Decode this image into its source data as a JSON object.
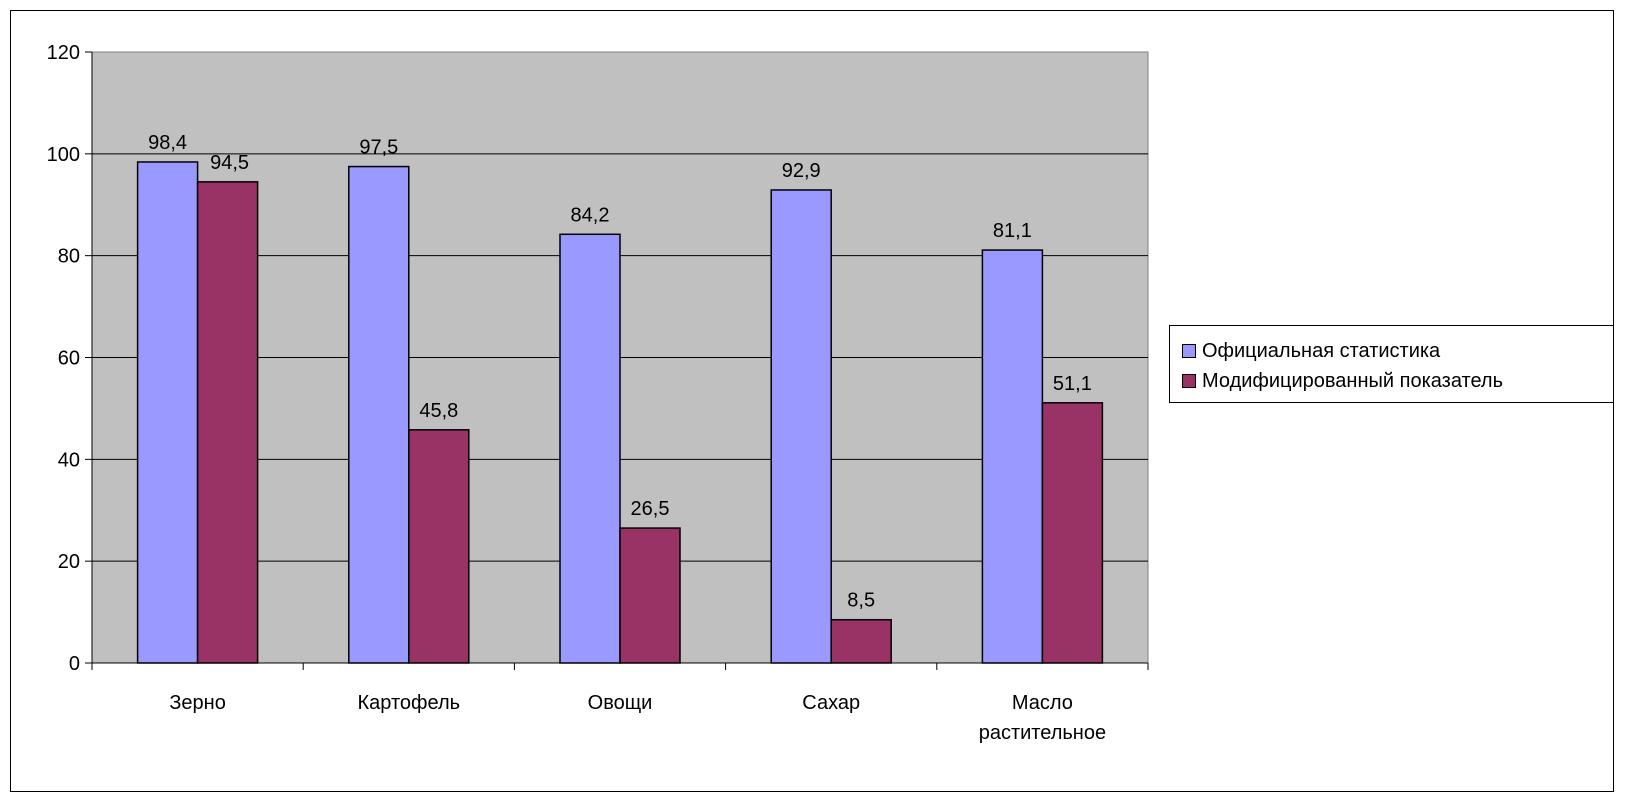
{
  "chart_data": {
    "type": "bar",
    "categories": [
      "Зерно",
      "Картофель",
      "Овощи",
      "Сахар",
      "Масло растительное"
    ],
    "series": [
      {
        "name": "Официальная статистика",
        "values": [
          98.4,
          97.5,
          84.2,
          92.9,
          81.1
        ],
        "labels": [
          "98,4",
          "97,5",
          "84,2",
          "92,9",
          "81,1"
        ],
        "color": "#9999ff"
      },
      {
        "name": "Модифицированный показатель",
        "values": [
          94.5,
          45.8,
          26.5,
          8.5,
          51.1
        ],
        "labels": [
          "94,5",
          "45,8",
          "26,5",
          "8,5",
          "51,1"
        ],
        "color": "#993366"
      }
    ],
    "ylim": [
      0,
      120
    ],
    "yticks": [
      "0",
      "20",
      "40",
      "60",
      "80",
      "100",
      "120"
    ],
    "title": "",
    "xlabel": "",
    "ylabel": "",
    "legend_position": "right",
    "plot_background": "#c0c0c0",
    "grid": true
  }
}
